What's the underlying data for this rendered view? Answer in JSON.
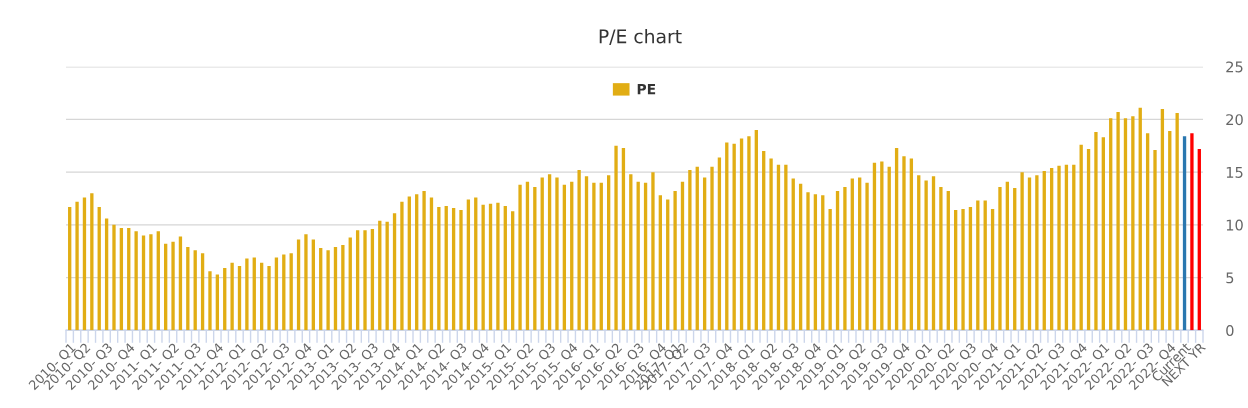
{
  "chart_data": {
    "type": "bar",
    "title": "P/E chart",
    "categories": [
      "2010- Q1",
      null,
      "2010- Q2",
      null,
      null,
      "2010- Q3",
      null,
      null,
      "2010- Q4",
      null,
      null,
      "2011- Q1",
      null,
      null,
      "2011- Q2",
      null,
      null,
      "2011- Q3",
      null,
      null,
      "2011- Q4",
      null,
      null,
      "2012- Q1",
      null,
      null,
      "2012- Q2",
      null,
      null,
      "2012- Q3",
      null,
      null,
      "2012- Q4",
      null,
      null,
      "2013- Q1",
      null,
      null,
      "2013- Q2",
      null,
      null,
      "2013- Q3",
      null,
      null,
      "2013- Q4",
      null,
      null,
      "2014- Q1",
      null,
      null,
      "2014- Q2",
      null,
      null,
      "2014- Q3",
      null,
      null,
      "2014- Q4",
      null,
      null,
      "2015- Q1",
      null,
      null,
      "2015- Q2",
      null,
      null,
      "2015- Q3",
      null,
      null,
      "2015- Q4",
      null,
      null,
      "2016- Q1",
      null,
      null,
      "2016- Q2",
      null,
      null,
      "2016- Q3",
      null,
      null,
      "2016- Q4",
      null,
      "2017- Q1",
      "2017- Q2",
      null,
      null,
      "2017- Q3",
      null,
      null,
      "2017- Q4",
      null,
      null,
      "2018- Q1",
      null,
      null,
      "2018- Q2",
      null,
      null,
      "2018- Q3",
      null,
      null,
      "2018- Q4",
      null,
      null,
      "2019- Q1",
      null,
      null,
      "2019- Q2",
      null,
      null,
      "2019- Q3",
      null,
      null,
      "2019- Q4",
      null,
      null,
      "2020- Q1",
      null,
      null,
      "2020- Q2",
      null,
      null,
      "2020- Q3",
      null,
      null,
      "2020- Q4",
      null,
      null,
      "2021- Q1",
      null,
      null,
      "2021- Q2",
      null,
      null,
      "2021- Q3",
      null,
      null,
      "2021- Q4",
      null,
      null,
      "2022- Q1",
      null,
      null,
      "2022- Q2",
      null,
      null,
      "2022- Q3",
      null,
      null,
      "2022- Q4",
      null,
      "Current",
      null,
      "NEXT YR"
    ],
    "series": [
      {
        "name": "PE",
        "color": "#e1ad14",
        "values": [
          11.7,
          12.2,
          12.6,
          13.0,
          11.7,
          10.6,
          10.0,
          9.7,
          9.7,
          9.4,
          9.0,
          9.1,
          9.4,
          8.2,
          8.4,
          8.9,
          7.9,
          7.6,
          7.3,
          5.6,
          5.3,
          5.9,
          6.4,
          6.1,
          6.8,
          6.9,
          6.4,
          6.1,
          6.9,
          7.2,
          7.3,
          8.6,
          9.1,
          8.6,
          7.8,
          7.6,
          7.9,
          8.1,
          8.8,
          9.5,
          9.5,
          9.6,
          10.4,
          10.3,
          11.1,
          12.2,
          12.7,
          12.9,
          13.2,
          12.6,
          11.7,
          11.8,
          11.6,
          11.4,
          12.4,
          12.6,
          11.9,
          12.0,
          12.1,
          11.8,
          11.3,
          13.8,
          14.1,
          13.6,
          14.5,
          14.8,
          14.5,
          13.8,
          14.1,
          15.2,
          14.6,
          14.0,
          14.0,
          14.7,
          17.5,
          17.3,
          14.8,
          14.1,
          14.0,
          15.0,
          12.8,
          12.4,
          13.2,
          14.1,
          15.2,
          15.5,
          14.5,
          15.5,
          16.4,
          17.8,
          17.7,
          18.2,
          18.4,
          19.0,
          17.0,
          16.3,
          15.7,
          15.7,
          14.4,
          13.9,
          13.1,
          12.9,
          12.8,
          11.5,
          13.2,
          13.6,
          14.4,
          14.5,
          14.0,
          15.9,
          16.0,
          15.5,
          17.3,
          16.5,
          16.3,
          14.7,
          14.2,
          14.6,
          13.6,
          13.2,
          11.4,
          11.5,
          11.7,
          12.3,
          12.3,
          11.5,
          13.6,
          14.1,
          13.5,
          15.0,
          14.5,
          14.7,
          15.1,
          15.4,
          15.6,
          15.7,
          15.7,
          17.6,
          17.2,
          18.8,
          18.3,
          20.1,
          20.7,
          20.1,
          20.3,
          21.1,
          18.7,
          17.1,
          21.0,
          18.9,
          20.6,
          18.4,
          18.7,
          17.2
        ],
        "colors": [
          "#e1ad14",
          "#e1ad14",
          "#e1ad14",
          "#e1ad14",
          "#e1ad14",
          "#e1ad14",
          "#e1ad14",
          "#e1ad14",
          "#e1ad14",
          "#e1ad14",
          "#e1ad14",
          "#e1ad14",
          "#e1ad14",
          "#e1ad14",
          "#e1ad14",
          "#e1ad14",
          "#e1ad14",
          "#e1ad14",
          "#e1ad14",
          "#e1ad14",
          "#e1ad14",
          "#e1ad14",
          "#e1ad14",
          "#e1ad14",
          "#e1ad14",
          "#e1ad14",
          "#e1ad14",
          "#e1ad14",
          "#e1ad14",
          "#e1ad14",
          "#e1ad14",
          "#e1ad14",
          "#e1ad14",
          "#e1ad14",
          "#e1ad14",
          "#e1ad14",
          "#e1ad14",
          "#e1ad14",
          "#e1ad14",
          "#e1ad14",
          "#e1ad14",
          "#e1ad14",
          "#e1ad14",
          "#e1ad14",
          "#e1ad14",
          "#e1ad14",
          "#e1ad14",
          "#e1ad14",
          "#e1ad14",
          "#e1ad14",
          "#e1ad14",
          "#e1ad14",
          "#e1ad14",
          "#e1ad14",
          "#e1ad14",
          "#e1ad14",
          "#e1ad14",
          "#e1ad14",
          "#e1ad14",
          "#e1ad14",
          "#e1ad14",
          "#e1ad14",
          "#e1ad14",
          "#e1ad14",
          "#e1ad14",
          "#e1ad14",
          "#e1ad14",
          "#e1ad14",
          "#e1ad14",
          "#e1ad14",
          "#e1ad14",
          "#e1ad14",
          "#e1ad14",
          "#e1ad14",
          "#e1ad14",
          "#e1ad14",
          "#e1ad14",
          "#e1ad14",
          "#e1ad14",
          "#e1ad14",
          "#e1ad14",
          "#e1ad14",
          "#e1ad14",
          "#e1ad14",
          "#e1ad14",
          "#e1ad14",
          "#e1ad14",
          "#e1ad14",
          "#e1ad14",
          "#e1ad14",
          "#e1ad14",
          "#e1ad14",
          "#e1ad14",
          "#e1ad14",
          "#e1ad14",
          "#e1ad14",
          "#e1ad14",
          "#e1ad14",
          "#e1ad14",
          "#e1ad14",
          "#e1ad14",
          "#e1ad14",
          "#e1ad14",
          "#e1ad14",
          "#e1ad14",
          "#e1ad14",
          "#e1ad14",
          "#e1ad14",
          "#e1ad14",
          "#e1ad14",
          "#e1ad14",
          "#e1ad14",
          "#e1ad14",
          "#e1ad14",
          "#e1ad14",
          "#e1ad14",
          "#e1ad14",
          "#e1ad14",
          "#e1ad14",
          "#e1ad14",
          "#e1ad14",
          "#e1ad14",
          "#e1ad14",
          "#e1ad14",
          "#e1ad14",
          "#e1ad14",
          "#e1ad14",
          "#e1ad14",
          "#e1ad14",
          "#e1ad14",
          "#e1ad14",
          "#e1ad14",
          "#e1ad14",
          "#e1ad14",
          "#e1ad14",
          "#e1ad14",
          "#e1ad14",
          "#e1ad14",
          "#e1ad14",
          "#e1ad14",
          "#e1ad14",
          "#e1ad14",
          "#e1ad14",
          "#e1ad14",
          "#e1ad14",
          "#e1ad14",
          "#e1ad14",
          "#e1ad14",
          "#e1ad14",
          "#e1ad14",
          "#e1ad14",
          "#2a77b0",
          "#ff0000",
          "#ff0000"
        ]
      }
    ],
    "ylim": [
      0,
      25
    ],
    "yticks": [
      0,
      5,
      10,
      15,
      20,
      25
    ],
    "grid": "y",
    "legend": "top"
  }
}
